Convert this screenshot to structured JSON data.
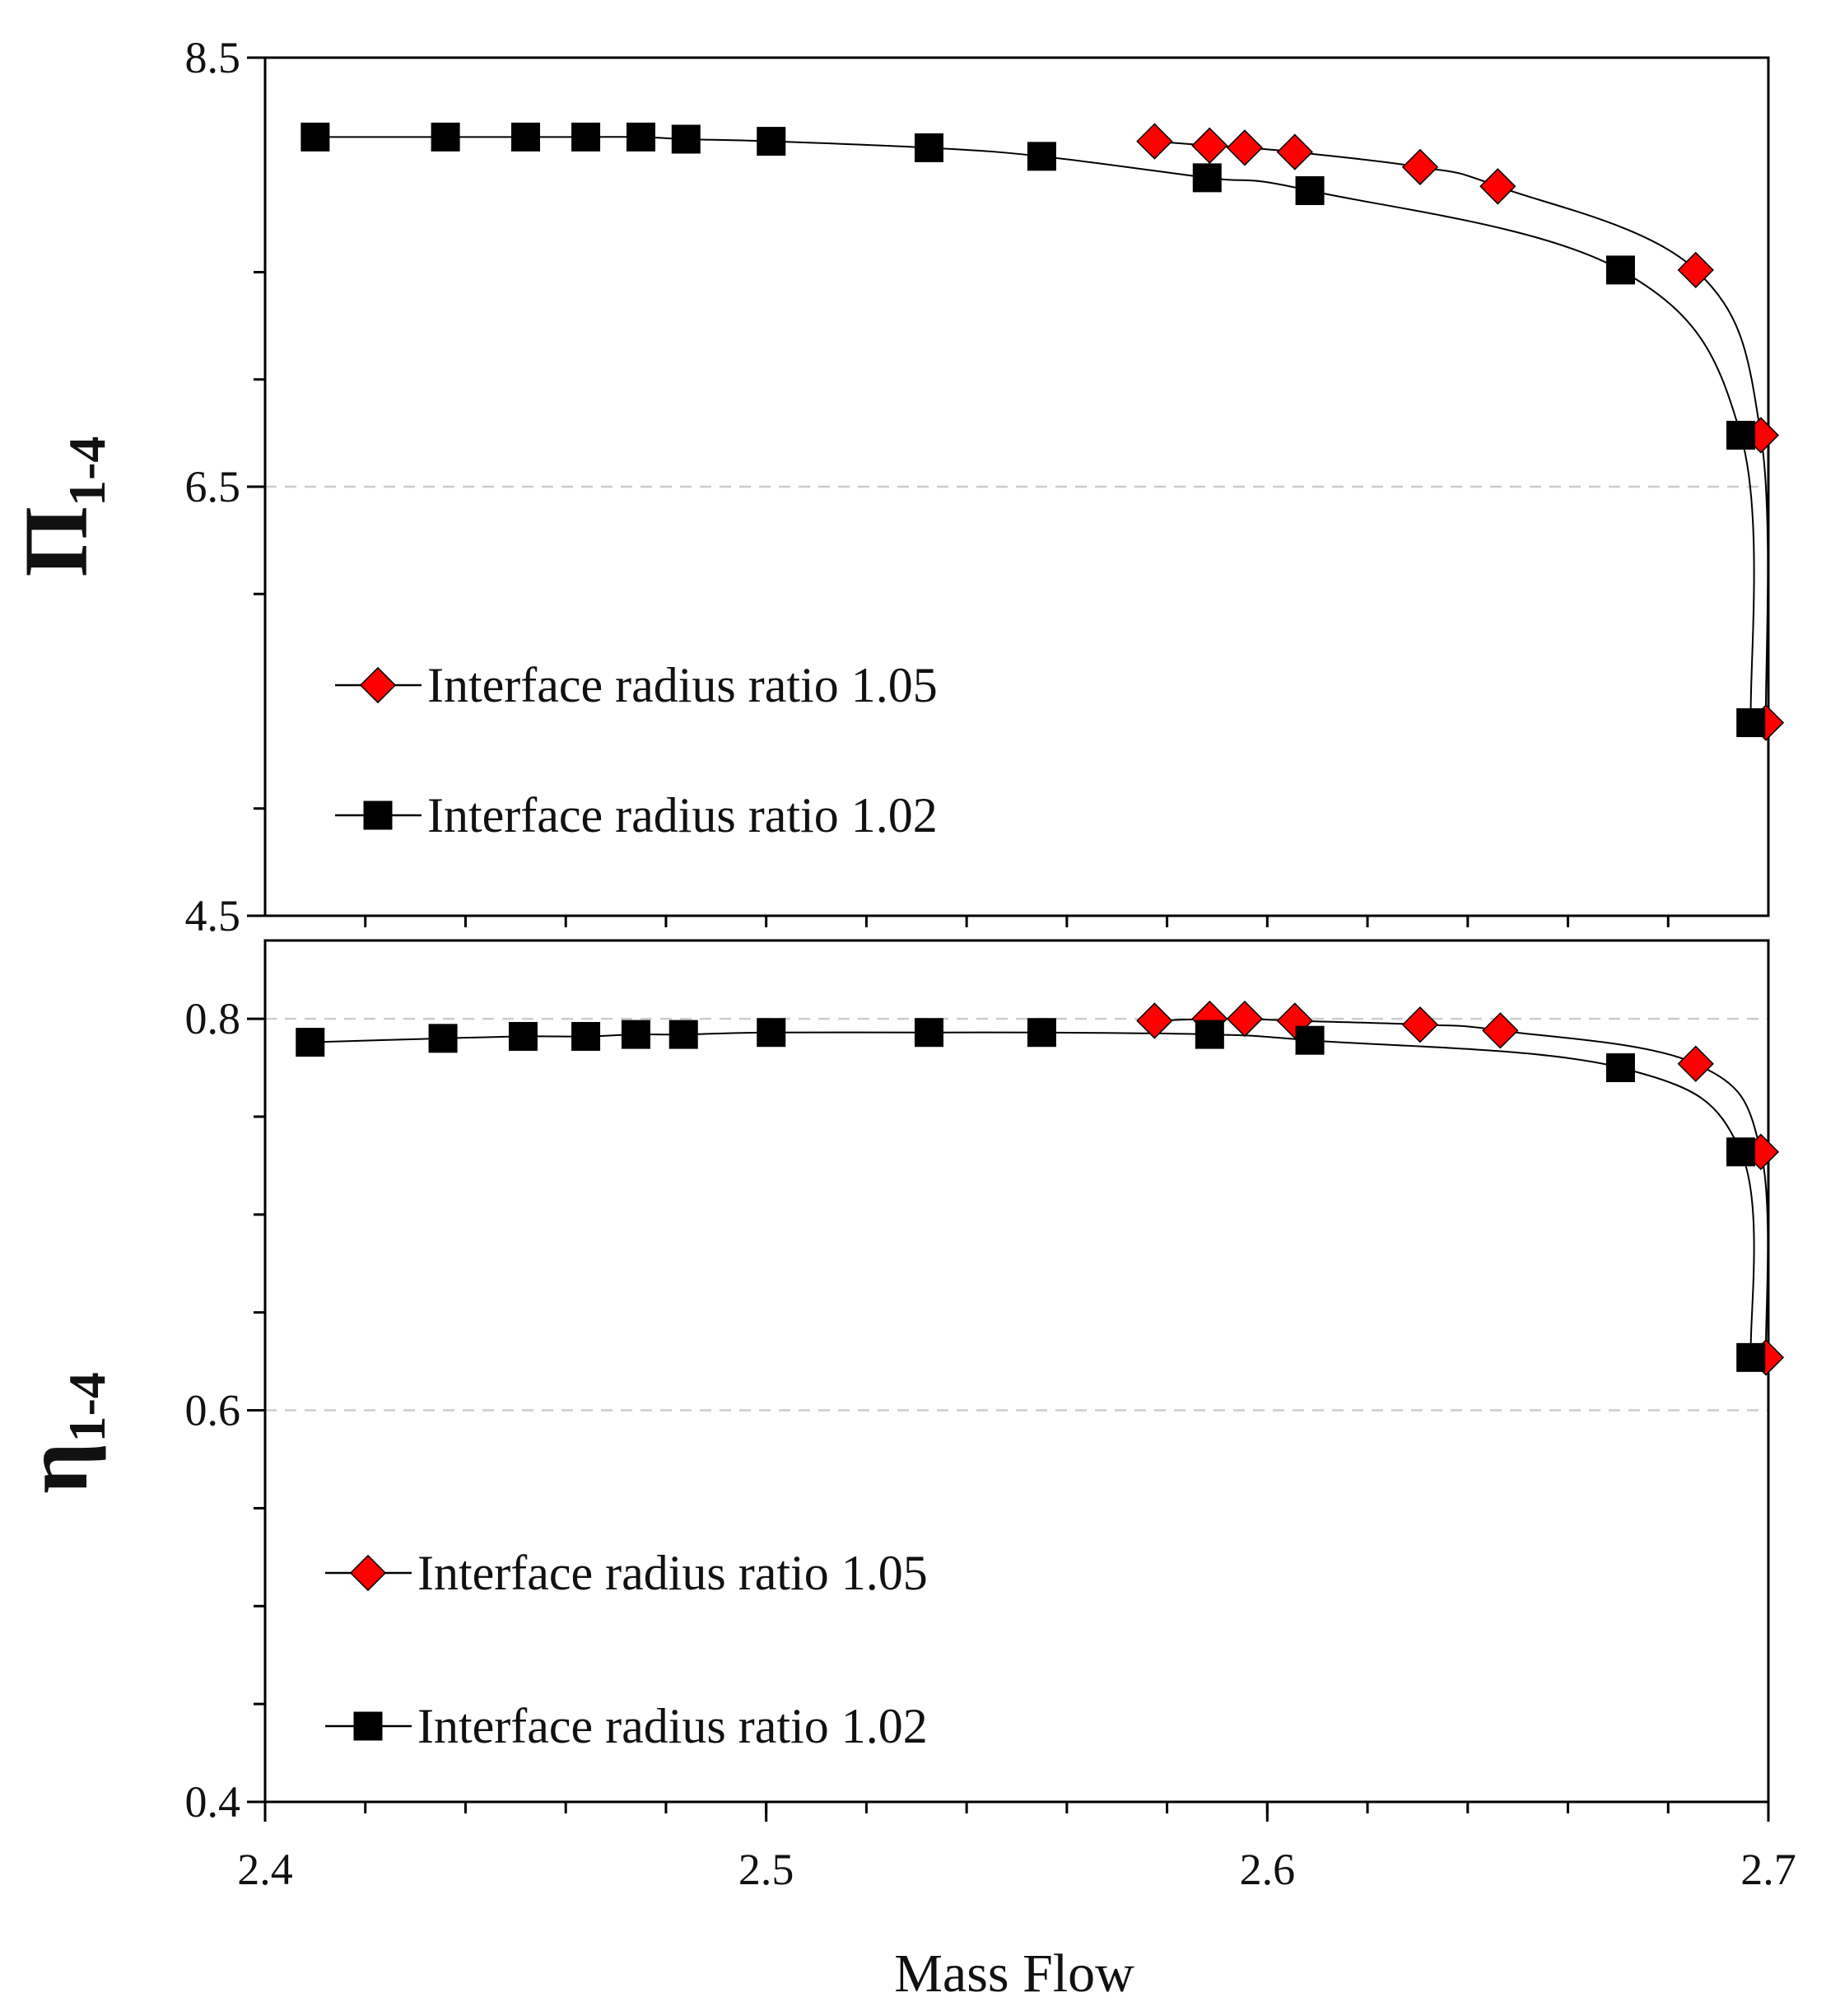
{
  "chart_data": [
    {
      "type": "scatter",
      "panel": "top",
      "title": "",
      "xlabel": "Mass Flow",
      "ylabel_main": "Π",
      "ylabel_sub": "1-4",
      "xlim": [
        2.4,
        2.7
      ],
      "ylim": [
        4.5,
        8.5
      ],
      "ytick_labels": [
        "8.5",
        "6.5",
        "4.5"
      ],
      "ytick_label_values": [
        8.5,
        6.5,
        4.5
      ],
      "minor_ytick_values": [
        7.5,
        7.0,
        6.0,
        5.0
      ],
      "x_minor_step": 0.02,
      "grid_y_values": [
        6.5
      ],
      "legend_position": "lower-left",
      "series": [
        {
          "name": "Interface radius ratio 1.05",
          "marker": "diamond",
          "color": "#ff0000",
          "x": [
            2.5775,
            2.5885,
            2.5955,
            2.6055,
            2.6305,
            2.646,
            2.6855,
            2.6985,
            2.6995
          ],
          "y": [
            8.11,
            8.09,
            8.08,
            8.06,
            7.99,
            7.9,
            7.51,
            6.74,
            5.4
          ]
        },
        {
          "name": "Interface radius ratio 1.02",
          "marker": "square",
          "color": "#000000",
          "x": [
            2.41,
            2.436,
            2.452,
            2.464,
            2.475,
            2.484,
            2.501,
            2.5325,
            2.555,
            2.588,
            2.6085,
            2.6705,
            2.6945,
            2.6965
          ],
          "y": [
            8.13,
            8.13,
            8.13,
            8.13,
            8.13,
            8.12,
            8.11,
            8.08,
            8.04,
            7.94,
            7.88,
            7.51,
            6.74,
            5.4
          ]
        }
      ]
    },
    {
      "type": "scatter",
      "panel": "bottom",
      "title": "",
      "xlabel": "Mass Flow",
      "ylabel_main": "η",
      "ylabel_sub": "1-4",
      "xlim": [
        2.4,
        2.7
      ],
      "ylim": [
        0.4,
        0.84
      ],
      "ytick_labels": [
        "0.8",
        "0.6",
        "0.4"
      ],
      "ytick_label_values": [
        0.8,
        0.6,
        0.4
      ],
      "minor_ytick_values": [
        0.75,
        0.7,
        0.65,
        0.55,
        0.5,
        0.45
      ],
      "x_minor_step": 0.02,
      "xtick_labels": [
        "2.4",
        "2.5",
        "2.6",
        "2.7"
      ],
      "xtick_values": [
        2.4,
        2.5,
        2.6,
        2.7
      ],
      "grid_y_values": [
        0.8,
        0.6
      ],
      "legend_position": "lower-left",
      "series": [
        {
          "name": "Interface radius ratio 1.05",
          "marker": "diamond",
          "color": "#ff0000",
          "x": [
            2.5775,
            2.5885,
            2.5955,
            2.6055,
            2.6305,
            2.6465,
            2.6855,
            2.6985,
            2.6995
          ],
          "y": [
            0.799,
            0.8,
            0.8,
            0.799,
            0.797,
            0.794,
            0.777,
            0.732,
            0.627
          ]
        },
        {
          "name": "Interface radius ratio 1.02",
          "marker": "square",
          "color": "#000000",
          "x": [
            2.409,
            2.4355,
            2.4515,
            2.464,
            2.474,
            2.4835,
            2.501,
            2.5325,
            2.555,
            2.5885,
            2.6085,
            2.6705,
            2.6945,
            2.6965
          ],
          "y": [
            0.788,
            0.79,
            0.791,
            0.791,
            0.792,
            0.792,
            0.793,
            0.793,
            0.793,
            0.792,
            0.789,
            0.775,
            0.732,
            0.627
          ]
        }
      ]
    }
  ]
}
